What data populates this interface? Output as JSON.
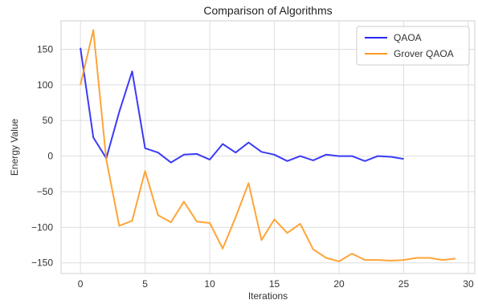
{
  "chart_data": {
    "type": "line",
    "title": "Comparison of Algorithms",
    "xlabel": "Iterations",
    "ylabel": "Energy Value",
    "xlim": [
      -1.5,
      30.5
    ],
    "ylim": [
      -165,
      190
    ],
    "xticks": [
      0,
      5,
      10,
      15,
      20,
      25,
      30
    ],
    "yticks": [
      -150,
      -100,
      -50,
      0,
      50,
      100,
      150
    ],
    "ytick_labels": [
      "−150",
      "−100",
      "−50",
      "0",
      "50",
      "100",
      "150"
    ],
    "grid": true,
    "legend_position": "top-right",
    "series": [
      {
        "name": "QAOA",
        "color": "#2626f5",
        "x": [
          0,
          1,
          2,
          3,
          4,
          5,
          6,
          7,
          8,
          9,
          10,
          11,
          12,
          13,
          14,
          15,
          16,
          17,
          18,
          19,
          20,
          21,
          22,
          23,
          24,
          25
        ],
        "values": [
          152,
          26,
          -3,
          62,
          119,
          11,
          5,
          -9,
          2,
          3,
          -5,
          17,
          5,
          19,
          6,
          2,
          -7,
          0,
          -6,
          2,
          0,
          0,
          -7,
          0,
          -1,
          -4
        ]
      },
      {
        "name": "Grover QAOA",
        "color": "#ff9a22",
        "x": [
          0,
          1,
          2,
          3,
          4,
          5,
          6,
          7,
          8,
          9,
          10,
          11,
          12,
          13,
          14,
          15,
          16,
          17,
          18,
          19,
          20,
          21,
          22,
          23,
          24,
          25,
          26,
          27,
          28,
          29
        ],
        "values": [
          100,
          177,
          -5,
          -98,
          -91,
          -21,
          -83,
          -93,
          -64,
          -92,
          -94,
          -130,
          -86,
          -38,
          -118,
          -89,
          -108,
          -95,
          -131,
          -143,
          -148,
          -137,
          -146,
          -146,
          -147,
          -146,
          -143,
          -143,
          -146,
          -144
        ]
      }
    ]
  }
}
